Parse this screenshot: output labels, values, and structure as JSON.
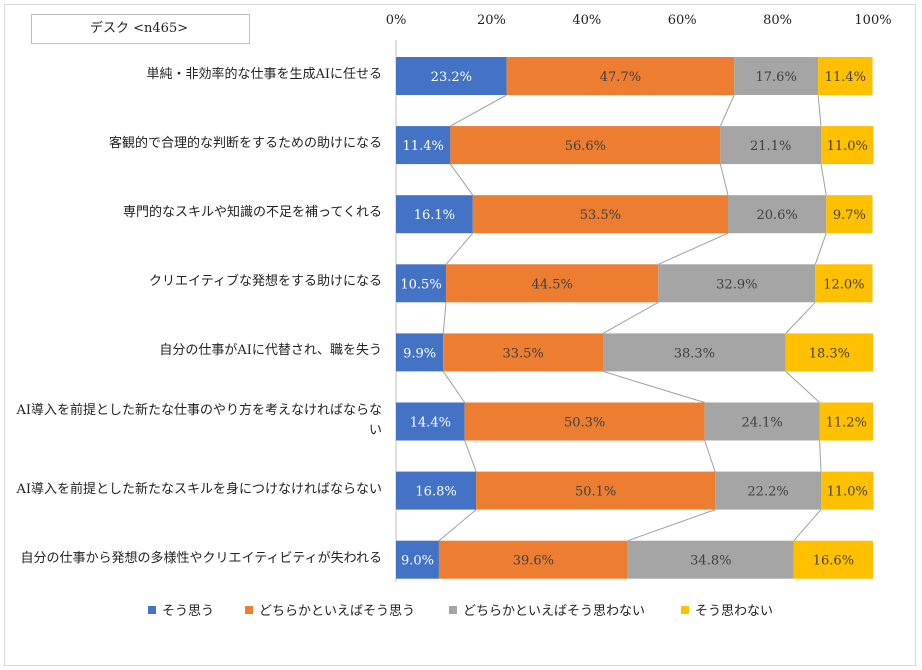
{
  "title": "デスク <n465>",
  "chart_data": {
    "type": "bar",
    "stacked": true,
    "orientation": "horizontal",
    "percent_scale": true,
    "xlim": [
      0,
      100
    ],
    "xticks": [
      "0%",
      "20%",
      "40%",
      "60%",
      "80%",
      "100%"
    ],
    "categories": [
      "単純・非効率的な仕事を生成AIに任せる",
      "客観的で合理的な判断をするための助けになる",
      "専門的なスキルや知識の不足を補ってくれる",
      "クリエイティブな発想をする助けになる",
      "自分の仕事がAIに代替され、職を失う",
      "AI導入を前提とした新たな仕事のやり方を考えなければならない",
      "AI導入を前提とした新たなスキルを身につけなければならない",
      "自分の仕事から発想の多様性やクリエイティビティが失われる"
    ],
    "series": [
      {
        "name": "そう思う",
        "color": "#4472c4",
        "label_color": "#ffffff",
        "values": [
          23.2,
          11.4,
          16.1,
          10.5,
          9.9,
          14.4,
          16.8,
          9.0
        ],
        "labels": [
          "23.2%",
          "11.4%",
          "16.1%",
          "10.5%",
          "9.9%",
          "14.4%",
          "16.8%",
          "9.0%"
        ]
      },
      {
        "name": "どちらかといえばそう思う",
        "color": "#ed7d31",
        "label_color": "#404040",
        "values": [
          47.7,
          56.6,
          53.5,
          44.5,
          33.5,
          50.3,
          50.1,
          39.6
        ],
        "labels": [
          "47.7%",
          "56.6%",
          "53.5%",
          "44.5%",
          "33.5%",
          "50.3%",
          "50.1%",
          "39.6%"
        ]
      },
      {
        "name": "どちらかといえばそう思わない",
        "color": "#a5a5a5",
        "label_color": "#404040",
        "values": [
          17.6,
          21.1,
          20.6,
          32.9,
          38.3,
          24.1,
          22.2,
          34.8
        ],
        "labels": [
          "17.6%",
          "21.1%",
          "20.6%",
          "32.9%",
          "38.3%",
          "24.1%",
          "22.2%",
          "34.8%"
        ]
      },
      {
        "name": "そう思わない",
        "color": "#ffc000",
        "label_color": "#404040",
        "values": [
          11.4,
          11.0,
          9.7,
          12.0,
          18.3,
          11.2,
          11.0,
          16.6
        ],
        "labels": [
          "11.4%",
          "11.0%",
          "9.7%",
          "12.0%",
          "18.3%",
          "11.2%",
          "11.0%",
          "16.6%"
        ]
      }
    ],
    "series_lines": true,
    "legend_position": "bottom"
  }
}
